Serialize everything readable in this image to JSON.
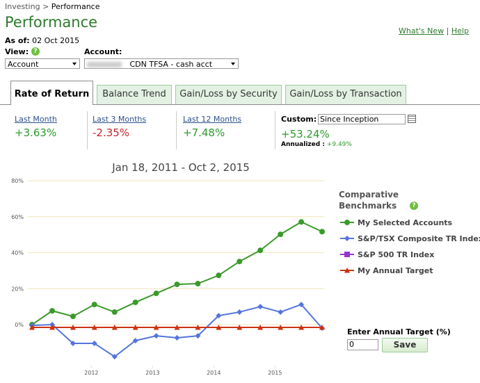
{
  "breadcrumb": {
    "link": "Investing",
    "separator": ">",
    "current": "Performance"
  },
  "title": "Performance",
  "as_of": {
    "label": "As of:",
    "value": "02 Oct 2015"
  },
  "links": {
    "whats_new": "What's New",
    "separator": "|",
    "help": "Help"
  },
  "view": {
    "label": "View:",
    "help": "?",
    "selected": "Account"
  },
  "account": {
    "label": "Account:",
    "selected": "CDN TFSA - cash acct"
  },
  "tabs": [
    "Rate of Return",
    "Balance Trend",
    "Gain/Loss by Security",
    "Gain/Loss by Transaction"
  ],
  "periods": [
    {
      "label": "Last Month",
      "value": "+3.63%"
    },
    {
      "label": "Last 3 Months",
      "value": "-2.35%"
    },
    {
      "label": "Last 12 Months",
      "value": "+7.48%"
    }
  ],
  "custom": {
    "label": "Custom:",
    "range": "Since Inception",
    "value": "+53.24%",
    "annualized_label": "Annualized :",
    "annualized": "+9.49%"
  },
  "chart_data": {
    "type": "line",
    "title": "Jan 18, 2011 - Oct 2, 2015",
    "legend_title": "Comparative Benchmarks",
    "legend_help": "?",
    "x": [
      2011.03,
      2011.36,
      2011.7,
      2012.05,
      2012.38,
      2012.72,
      2013.06,
      2013.4,
      2013.74,
      2014.08,
      2014.42,
      2014.76,
      2015.09,
      2015.43,
      2015.77
    ],
    "xlim": [
      2011.03,
      2015.77
    ],
    "xticks": [
      2012,
      2013,
      2014,
      2015
    ],
    "ylim": [
      -22,
      80
    ],
    "yticks": [
      {
        "value": 0,
        "label": "0%"
      },
      {
        "value": 20,
        "label": "20%"
      },
      {
        "value": 40,
        "label": "40%"
      },
      {
        "value": 60,
        "label": "60%"
      },
      {
        "value": 80,
        "label": "80%"
      }
    ],
    "grid": true,
    "series": [
      {
        "name": "My Selected Accounts",
        "color": "#3a9a2a",
        "marker": "circle",
        "values": [
          0,
          7.7,
          4.6,
          11.2,
          7,
          12.4,
          17.4,
          22.4,
          22.8,
          27.4,
          35.1,
          41.3,
          50.2,
          57.1,
          51.7
        ]
      },
      {
        "name": "S&P/TSX Composite TR Index",
        "color": "#5574dd",
        "marker": "diamond",
        "values": [
          -0.4,
          0,
          -10.4,
          -10.4,
          -17.8,
          -8.9,
          -6.2,
          -7.3,
          -6.2,
          5,
          7,
          10,
          7,
          11.2,
          -1.9
        ]
      },
      {
        "name": "S&P 500 TR Index",
        "color": "#9933cc",
        "marker": "square",
        "values": [
          null,
          null,
          null,
          null,
          null,
          null,
          null,
          null,
          null,
          null,
          null,
          null,
          null,
          null,
          null
        ]
      },
      {
        "name": "My Annual Target",
        "color": "#cc3311",
        "marker": "triangle",
        "values": [
          -1.5,
          -1.5,
          -1.5,
          -1.5,
          -1.5,
          -1.5,
          -1.5,
          -1.5,
          -1.5,
          -1.5,
          -1.5,
          -1.5,
          -1.5,
          -1.5,
          -1.5
        ]
      }
    ]
  },
  "annual_target": {
    "label": "Enter Annual Target (%)",
    "value": "0",
    "button": "Save"
  }
}
